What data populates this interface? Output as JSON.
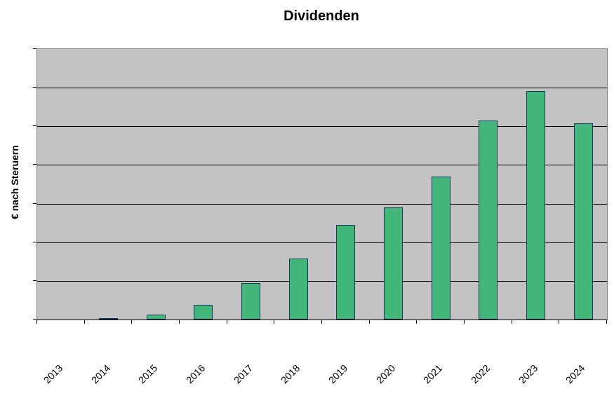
{
  "chart": {
    "title": "Dividenden",
    "ylabel": "€ nach Steruern"
  },
  "chart_data": {
    "type": "bar",
    "title": "Dividenden",
    "xlabel": "",
    "ylabel": "€ nach Steruern",
    "categories": [
      "2013",
      "2014",
      "2015",
      "2016",
      "2017",
      "2018",
      "2019",
      "2020",
      "2021",
      "2022",
      "2023",
      "2024"
    ],
    "values": [
      0,
      0.04,
      0.13,
      0.38,
      0.95,
      1.58,
      2.45,
      2.9,
      3.7,
      5.15,
      5.92,
      5.08
    ],
    "ylim": [
      0,
      7
    ],
    "y_tick_interval": 1,
    "y_tick_labels_visible": false,
    "grid": true,
    "legend": false,
    "x_label_rotation_deg": 45,
    "colors": {
      "bar_fill": "#43B77A",
      "bar_border": "#17375D",
      "plot_background": "#C3C3C3",
      "gridline": "#000000",
      "plot_border": "#808080",
      "axis": "#000000",
      "text": "#000000",
      "page_background": "#FFFFFF"
    }
  }
}
